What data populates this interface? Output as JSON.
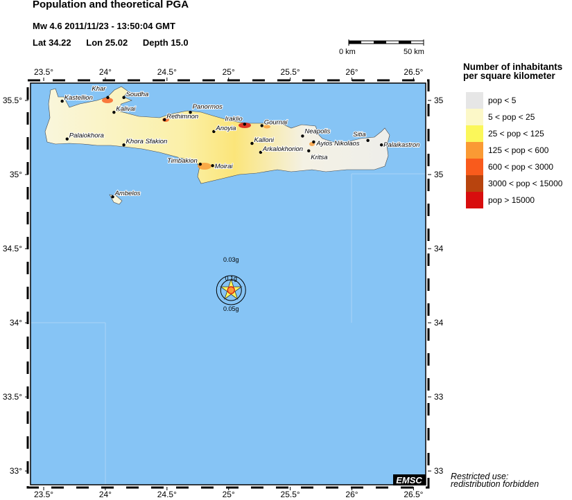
{
  "header": {
    "title": "Population and theoretical PGA",
    "event": "Mw 4.6  2011/11/23 - 13:50:04 GMT",
    "lat_label": "Lat 34.22",
    "lon_label": "Lon  25.02",
    "depth_label": "Depth  15.0"
  },
  "scale_bar": {
    "start": "0 km",
    "end": "50 km"
  },
  "map": {
    "lon_ticks": [
      "23.5°",
      "24°",
      "24.5°",
      "25°",
      "25.5°",
      "26°",
      "26.5°"
    ],
    "lat_ticks": [
      "35.5°",
      "35°",
      "34.5°",
      "34°",
      "33.5°",
      "33°"
    ],
    "colors": {
      "sea": "#86c4f5",
      "land": "#f4f1e4",
      "frame": "#000000"
    },
    "epicenter": {
      "lon": 25.02,
      "lat": 34.22,
      "icon": "star-icon"
    },
    "pga_labels": [
      "0.03g",
      "0.1g",
      "0.05g"
    ],
    "towns": [
      {
        "name": "Kastellion",
        "lon": 23.65,
        "lat": 35.495
      },
      {
        "name": "Khar",
        "lon": 24.02,
        "lat": 35.52
      },
      {
        "name": "Soudha",
        "lon": 24.15,
        "lat": 35.52
      },
      {
        "name": "Kalivai",
        "lon": 24.07,
        "lat": 35.42
      },
      {
        "name": "Rethimnon",
        "lon": 24.48,
        "lat": 35.37
      },
      {
        "name": "Panormos",
        "lon": 24.69,
        "lat": 35.42
      },
      {
        "name": "Anoyia",
        "lon": 24.88,
        "lat": 35.29
      },
      {
        "name": "Iraklio",
        "lon": 25.13,
        "lat": 35.34
      },
      {
        "name": "Gournai",
        "lon": 25.27,
        "lat": 35.33
      },
      {
        "name": "Kalloni",
        "lon": 25.19,
        "lat": 35.21
      },
      {
        "name": "Arkalokhorion",
        "lon": 25.26,
        "lat": 35.15
      },
      {
        "name": "Neapolis",
        "lon": 25.6,
        "lat": 35.26
      },
      {
        "name": "Ayios Nikolaos",
        "lon": 25.69,
        "lat": 35.22
      },
      {
        "name": "Kritsa",
        "lon": 25.65,
        "lat": 35.16
      },
      {
        "name": "Sitia",
        "lon": 26.13,
        "lat": 35.23
      },
      {
        "name": "Palaikastron",
        "lon": 26.24,
        "lat": 35.2
      },
      {
        "name": "Palaiokhora",
        "lon": 23.69,
        "lat": 35.24
      },
      {
        "name": "Khora Sfakion",
        "lon": 24.15,
        "lat": 35.2
      },
      {
        "name": "Timbakion",
        "lon": 24.77,
        "lat": 35.07
      },
      {
        "name": "Moirai",
        "lon": 24.87,
        "lat": 35.06
      },
      {
        "name": "Ambelos",
        "lon": 24.06,
        "lat": 34.85
      }
    ],
    "logo": "EMSC"
  },
  "legend": {
    "title_line1": "Number of inhabitants",
    "title_line2": "per square kilometer",
    "items": [
      {
        "label": "pop < 5",
        "color": "#e6e6e6"
      },
      {
        "label": "5 < pop < 25",
        "color": "#fcf8c8"
      },
      {
        "label": "25 < pop < 125",
        "color": "#fbf75a"
      },
      {
        "label": "125 < pop < 600",
        "color": "#fa9a34"
      },
      {
        "label": "600 < pop < 3000",
        "color": "#f95b1c"
      },
      {
        "label": "3000 < pop < 15000",
        "color": "#b8440e"
      },
      {
        "label": "pop > 15000",
        "color": "#d80e0e"
      }
    ]
  },
  "notice": {
    "line1": "Restricted use:",
    "line2": "redistribution forbidden"
  }
}
